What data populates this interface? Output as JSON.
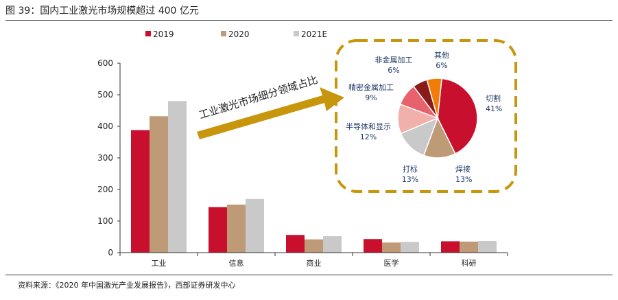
{
  "figure": {
    "title": "图 39：国内工业激光市场规模超过 400 亿元",
    "source": "资料来源：《2020 年中国激光产业发展报告》，西部证券研发中心"
  },
  "chart_data": [
    {
      "type": "bar",
      "categories": [
        "工业",
        "信息",
        "商业",
        "医学",
        "科研"
      ],
      "series": [
        {
          "name": "2019",
          "color": "#c8102e",
          "values": [
            388,
            144,
            56,
            43,
            36
          ]
        },
        {
          "name": "2020",
          "color": "#bf9a77",
          "values": [
            432,
            152,
            42,
            32,
            35
          ]
        },
        {
          "name": "2021E",
          "color": "#c9c9c9",
          "values": [
            480,
            170,
            52,
            34,
            37
          ]
        }
      ],
      "ylim": [
        0,
        600
      ],
      "yticks": [
        "0",
        "100",
        "200",
        "300",
        "400",
        "500",
        "600"
      ],
      "grid": false,
      "legend": "top-left"
    },
    {
      "type": "pie",
      "title": "",
      "annotation": "工业激光市场细分领域占比",
      "slices": [
        {
          "label": "切割",
          "value": 41,
          "display": "41%",
          "color": "#c8102e"
        },
        {
          "label": "焊接",
          "value": 13,
          "display": "13%",
          "color": "#bf9a77"
        },
        {
          "label": "打标",
          "value": 13,
          "display": "13%",
          "color": "#c9c9c9"
        },
        {
          "label": "半导体和显示",
          "value": 12,
          "display": "12%",
          "color": "#f2b0aa"
        },
        {
          "label": "精密金属加工",
          "value": 9,
          "display": "9%",
          "color": "#e8626e"
        },
        {
          "label": "非金属加工",
          "value": 6,
          "display": "6%",
          "color": "#8b1a1a"
        },
        {
          "label": "其他",
          "value": 6,
          "display": "6%",
          "color": "#f07c0a"
        }
      ]
    }
  ]
}
